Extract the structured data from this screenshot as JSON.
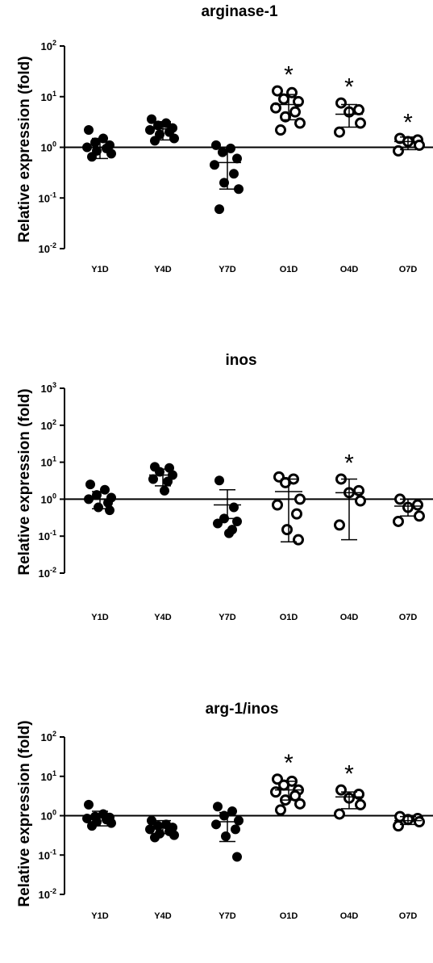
{
  "chart_data": [
    {
      "type": "scatter",
      "title": "arginase-1",
      "ylabel": "Relative expression (fold)",
      "yscale": "log",
      "ylim": [
        0.01,
        100
      ],
      "yticks": [
        {
          "base": "10",
          "exp": "2"
        },
        {
          "base": "10",
          "exp": "1"
        },
        {
          "base": "10",
          "exp": "0"
        },
        {
          "base": "10",
          "exp": "-1"
        },
        {
          "base": "10",
          "exp": "-2"
        }
      ],
      "reference_line": 1,
      "categories": [
        "Y1D",
        "Y4D",
        "Y7D",
        "O1D",
        "O4D",
        "O7D"
      ],
      "groups": [
        {
          "name": "Y1D",
          "marker": "filled",
          "mean": 1.0,
          "err": [
            0.6,
            1.5
          ],
          "points": [
            2.2,
            1.5,
            1.25,
            1.1,
            1.0,
            0.95,
            0.85,
            0.75,
            0.65
          ]
        },
        {
          "name": "Y4D",
          "marker": "filled",
          "mean": 2.3,
          "err": [
            1.4,
            3.2
          ],
          "points": [
            3.6,
            3.0,
            2.7,
            2.4,
            2.2,
            2.0,
            1.8,
            1.5,
            1.35
          ]
        },
        {
          "name": "Y7D",
          "marker": "filled",
          "mean": 0.5,
          "err": [
            0.15,
            1.0
          ],
          "points": [
            1.1,
            0.95,
            0.8,
            0.6,
            0.45,
            0.3,
            0.2,
            0.15,
            0.06
          ]
        },
        {
          "name": "O1D",
          "marker": "open",
          "mean": 7.0,
          "err": [
            3.5,
            11.0
          ],
          "points": [
            13,
            12,
            9,
            8,
            6,
            5,
            4,
            3,
            2.2
          ],
          "significant": true
        },
        {
          "name": "O4D",
          "marker": "open",
          "mean": 4.5,
          "err": [
            2.5,
            7.0
          ],
          "points": [
            7.5,
            5.5,
            5.0,
            3.0,
            2.0
          ],
          "significant": true
        },
        {
          "name": "O7D",
          "marker": "open",
          "mean": 1.3,
          "err": [
            0.9,
            1.6
          ],
          "points": [
            1.5,
            1.4,
            1.3,
            1.1,
            0.85
          ],
          "significant": true
        }
      ]
    },
    {
      "type": "scatter",
      "title": "inos",
      "ylabel": "Relative expression (fold)",
      "yscale": "log",
      "ylim": [
        0.01,
        1000
      ],
      "yticks": [
        {
          "base": "10",
          "exp": "3"
        },
        {
          "base": "10",
          "exp": "2"
        },
        {
          "base": "10",
          "exp": "1"
        },
        {
          "base": "10",
          "exp": "0"
        },
        {
          "base": "10",
          "exp": "-1"
        },
        {
          "base": "10",
          "exp": "-2"
        }
      ],
      "reference_line": 1,
      "categories": [
        "Y1D",
        "Y4D",
        "Y7D",
        "O1D",
        "O4D",
        "O7D"
      ],
      "groups": [
        {
          "name": "Y1D",
          "marker": "filled",
          "mean": 1.0,
          "err": [
            0.55,
            1.6
          ],
          "points": [
            2.5,
            1.8,
            1.3,
            1.1,
            1.0,
            0.8,
            0.6,
            0.5
          ]
        },
        {
          "name": "Y4D",
          "marker": "filled",
          "mean": 4.5,
          "err": [
            2.3,
            6.5
          ],
          "points": [
            7.5,
            7.0,
            5.5,
            4.5,
            3.5,
            3.0,
            1.7
          ]
        },
        {
          "name": "Y7D",
          "marker": "filled",
          "mean": 0.7,
          "err": [
            0.3,
            1.8
          ],
          "points": [
            3.2,
            0.6,
            0.3,
            0.25,
            0.22,
            0.15,
            0.12
          ]
        },
        {
          "name": "O1D",
          "marker": "open",
          "mean": 1.6,
          "err": [
            0.07,
            3.5
          ],
          "points": [
            4.0,
            3.5,
            2.8,
            1.0,
            0.7,
            0.4,
            0.15,
            0.08
          ]
        },
        {
          "name": "O4D",
          "marker": "open",
          "mean": 1.5,
          "err": [
            0.08,
            3.5
          ],
          "points": [
            3.5,
            1.7,
            1.5,
            0.9,
            0.2
          ],
          "significant": true
        },
        {
          "name": "O7D",
          "marker": "open",
          "mean": 0.65,
          "err": [
            0.35,
            1.0
          ],
          "points": [
            1.0,
            0.7,
            0.6,
            0.35,
            0.25
          ]
        }
      ]
    },
    {
      "type": "scatter",
      "title": "arg-1/inos",
      "ylabel": "Relative expression (fold)",
      "yscale": "log",
      "ylim": [
        0.01,
        100
      ],
      "yticks": [
        {
          "base": "10",
          "exp": "2"
        },
        {
          "base": "10",
          "exp": "1"
        },
        {
          "base": "10",
          "exp": "0"
        },
        {
          "base": "10",
          "exp": "-1"
        },
        {
          "base": "10",
          "exp": "-2"
        }
      ],
      "reference_line": 1,
      "categories": [
        "Y1D",
        "Y4D",
        "Y7D",
        "O1D",
        "O4D",
        "O7D"
      ],
      "groups": [
        {
          "name": "Y1D",
          "marker": "filled",
          "mean": 0.9,
          "err": [
            0.55,
            1.3
          ],
          "points": [
            1.9,
            1.1,
            0.95,
            0.9,
            0.85,
            0.8,
            0.7,
            0.65,
            0.55
          ]
        },
        {
          "name": "Y4D",
          "marker": "filled",
          "mean": 0.5,
          "err": [
            0.35,
            0.75
          ],
          "points": [
            0.75,
            0.6,
            0.55,
            0.5,
            0.45,
            0.4,
            0.35,
            0.32,
            0.28
          ]
        },
        {
          "name": "Y7D",
          "marker": "filled",
          "mean": 0.7,
          "err": [
            0.22,
            1.2
          ],
          "points": [
            1.7,
            1.3,
            1.0,
            0.75,
            0.6,
            0.45,
            0.3,
            0.09
          ]
        },
        {
          "name": "O1D",
          "marker": "open",
          "mean": 4.5,
          "err": [
            2.5,
            7.5
          ],
          "points": [
            8.5,
            7.5,
            6.0,
            4.5,
            4.0,
            3.2,
            2.5,
            2.0,
            1.4
          ],
          "significant": true
        },
        {
          "name": "O4D",
          "marker": "open",
          "mean": 3.0,
          "err": [
            1.5,
            4.0
          ],
          "points": [
            4.5,
            3.5,
            2.8,
            1.9,
            1.1
          ],
          "significant": true
        },
        {
          "name": "O7D",
          "marker": "open",
          "mean": 0.75,
          "err": [
            0.6,
            0.95
          ],
          "points": [
            0.95,
            0.85,
            0.8,
            0.7,
            0.55
          ]
        }
      ]
    }
  ]
}
